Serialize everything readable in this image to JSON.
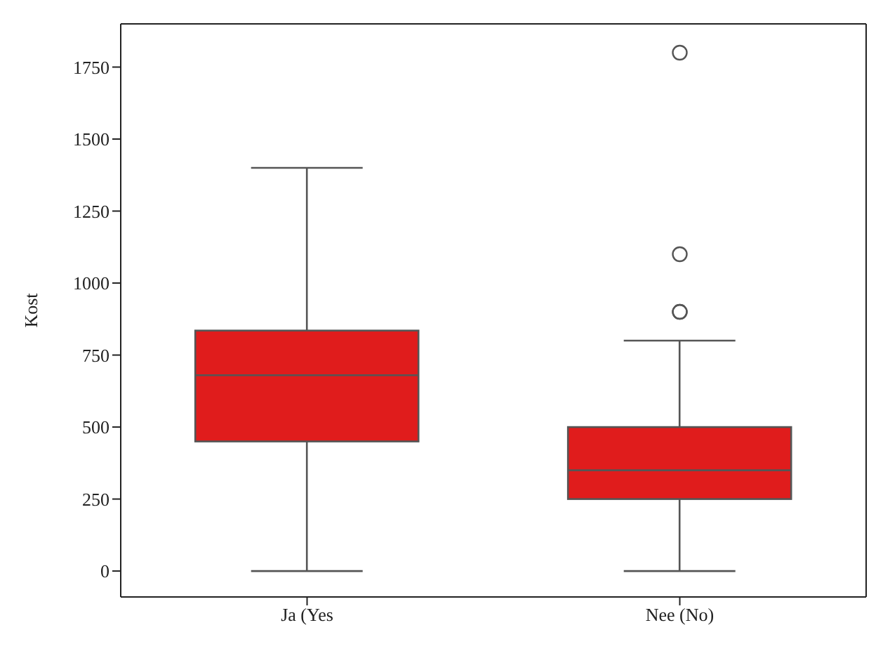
{
  "chart_data": {
    "type": "box",
    "ylabel": "Kost",
    "categories": [
      "Ja (Yes",
      "Nee (No)"
    ],
    "series": [
      {
        "color": "#e01c1c",
        "boxes": [
          {
            "low": 0,
            "q1": 450,
            "median": 680,
            "q3": 835,
            "high": 1400
          },
          {
            "low": 0,
            "q1": 250,
            "median": 350,
            "q3": 500,
            "high": 800,
            "outliers": [
              900,
              900,
              1100,
              1800
            ]
          }
        ]
      }
    ],
    "ylim": [
      -90,
      1900
    ],
    "yticks": [
      0,
      250,
      500,
      750,
      1000,
      1250,
      1500,
      1750
    ],
    "grid": false,
    "legend": false
  }
}
